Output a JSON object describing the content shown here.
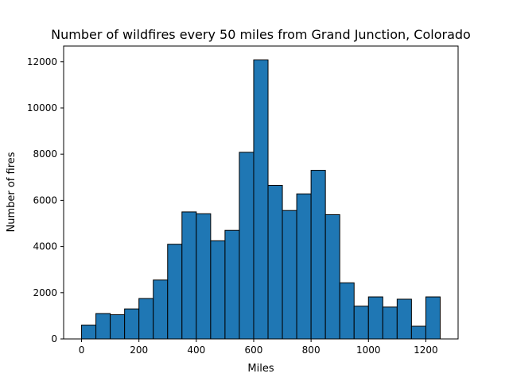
{
  "chart_data": {
    "type": "bar",
    "subtype": "histogram",
    "title": "Number of wildfires every 50 miles from Grand Junction, Colorado",
    "xlabel": "Miles",
    "ylabel": "Number of fires",
    "bin_width": 50,
    "bin_starts": [
      0,
      50,
      100,
      150,
      200,
      250,
      300,
      350,
      400,
      450,
      500,
      550,
      600,
      650,
      700,
      750,
      800,
      850,
      900,
      950,
      1000,
      1050,
      1100,
      1150,
      1200
    ],
    "values": [
      600,
      1100,
      1050,
      1300,
      1750,
      2550,
      4100,
      5500,
      5420,
      4250,
      4700,
      8080,
      12080,
      6650,
      5560,
      6280,
      7300,
      5380,
      2430,
      1420,
      1820,
      1380,
      1720,
      550,
      1820
    ],
    "xlim": [
      -62.5,
      1312.5
    ],
    "ylim": [
      0,
      12680
    ],
    "xticks": [
      0,
      200,
      400,
      600,
      800,
      1000,
      1200
    ],
    "yticks": [
      0,
      2000,
      4000,
      6000,
      8000,
      10000,
      12000
    ],
    "xtick_labels": [
      "0",
      "200",
      "400",
      "600",
      "800",
      "1000",
      "1200"
    ],
    "ytick_labels": [
      "0",
      "2000",
      "4000",
      "6000",
      "8000",
      "10000",
      "12000"
    ],
    "bar_color": "#1f77b4",
    "edge_color": "#000000",
    "grid": false,
    "legend": "none"
  }
}
